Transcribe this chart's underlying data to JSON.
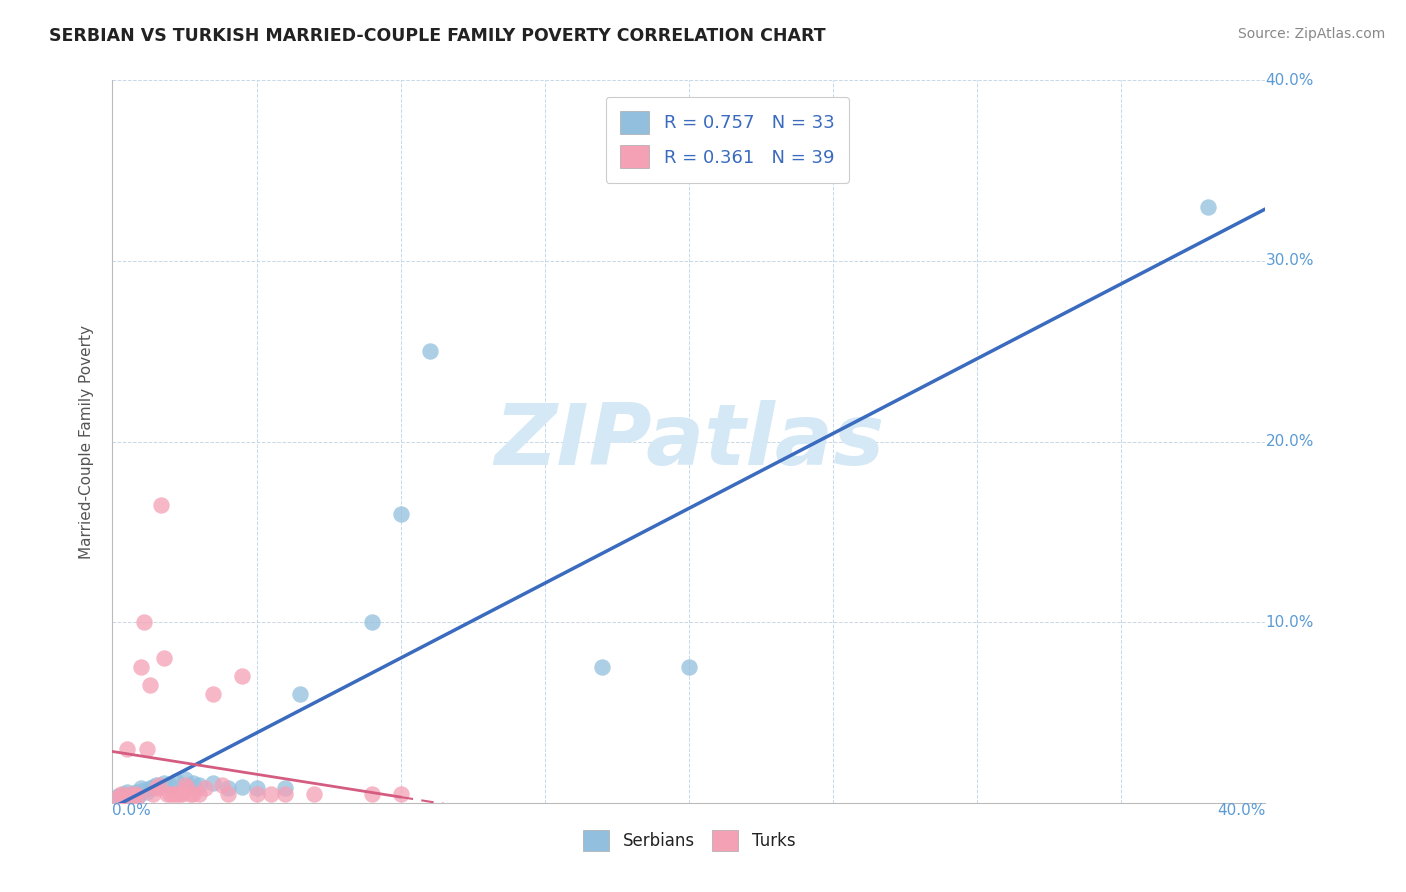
{
  "title": "SERBIAN VS TURKISH MARRIED-COUPLE FAMILY POVERTY CORRELATION CHART",
  "source": "Source: ZipAtlas.com",
  "ylabel": "Married-Couple Family Poverty",
  "serbian_R": 0.757,
  "serbian_N": 33,
  "turkish_R": 0.361,
  "turkish_N": 39,
  "serbian_color": "#92bfde",
  "turkish_color": "#f4a0b5",
  "serbian_line_color": "#3a6bbf",
  "turkish_line_color": "#d45c80",
  "watermark_color": "#d5e8f5",
  "background_color": "#ffffff",
  "grid_color": "#c8d8e8",
  "serbian_scatter": [
    [
      0.002,
      0.004
    ],
    [
      0.003,
      0.003
    ],
    [
      0.004,
      0.005
    ],
    [
      0.005,
      0.006
    ],
    [
      0.006,
      0.004
    ],
    [
      0.007,
      0.005
    ],
    [
      0.008,
      0.006
    ],
    [
      0.009,
      0.004
    ],
    [
      0.01,
      0.008
    ],
    [
      0.011,
      0.007
    ],
    [
      0.012,
      0.006
    ],
    [
      0.013,
      0.008
    ],
    [
      0.014,
      0.009
    ],
    [
      0.015,
      0.01
    ],
    [
      0.016,
      0.009
    ],
    [
      0.018,
      0.011
    ],
    [
      0.02,
      0.01
    ],
    [
      0.022,
      0.012
    ],
    [
      0.025,
      0.013
    ],
    [
      0.028,
      0.011
    ],
    [
      0.03,
      0.01
    ],
    [
      0.035,
      0.011
    ],
    [
      0.04,
      0.008
    ],
    [
      0.045,
      0.009
    ],
    [
      0.05,
      0.008
    ],
    [
      0.06,
      0.008
    ],
    [
      0.065,
      0.06
    ],
    [
      0.09,
      0.1
    ],
    [
      0.1,
      0.16
    ],
    [
      0.11,
      0.25
    ],
    [
      0.17,
      0.075
    ],
    [
      0.2,
      0.075
    ],
    [
      0.38,
      0.33
    ]
  ],
  "turkish_scatter": [
    [
      0.002,
      0.003
    ],
    [
      0.003,
      0.005
    ],
    [
      0.004,
      0.004
    ],
    [
      0.005,
      0.03
    ],
    [
      0.006,
      0.005
    ],
    [
      0.007,
      0.003
    ],
    [
      0.008,
      0.005
    ],
    [
      0.009,
      0.004
    ],
    [
      0.01,
      0.075
    ],
    [
      0.011,
      0.1
    ],
    [
      0.012,
      0.03
    ],
    [
      0.013,
      0.065
    ],
    [
      0.014,
      0.005
    ],
    [
      0.015,
      0.008
    ],
    [
      0.016,
      0.01
    ],
    [
      0.017,
      0.165
    ],
    [
      0.018,
      0.08
    ],
    [
      0.019,
      0.005
    ],
    [
      0.02,
      0.005
    ],
    [
      0.021,
      0.005
    ],
    [
      0.022,
      0.005
    ],
    [
      0.023,
      0.005
    ],
    [
      0.024,
      0.005
    ],
    [
      0.025,
      0.01
    ],
    [
      0.026,
      0.008
    ],
    [
      0.027,
      0.005
    ],
    [
      0.028,
      0.005
    ],
    [
      0.03,
      0.005
    ],
    [
      0.032,
      0.008
    ],
    [
      0.035,
      0.06
    ],
    [
      0.038,
      0.01
    ],
    [
      0.04,
      0.005
    ],
    [
      0.045,
      0.07
    ],
    [
      0.05,
      0.005
    ],
    [
      0.055,
      0.005
    ],
    [
      0.06,
      0.005
    ],
    [
      0.07,
      0.005
    ],
    [
      0.09,
      0.005
    ],
    [
      0.1,
      0.005
    ]
  ],
  "xlim": [
    0.0,
    0.4
  ],
  "ylim": [
    0.0,
    0.4
  ],
  "yticks": [
    0.0,
    0.1,
    0.2,
    0.3,
    0.4
  ],
  "xtick_minor_count": 9
}
